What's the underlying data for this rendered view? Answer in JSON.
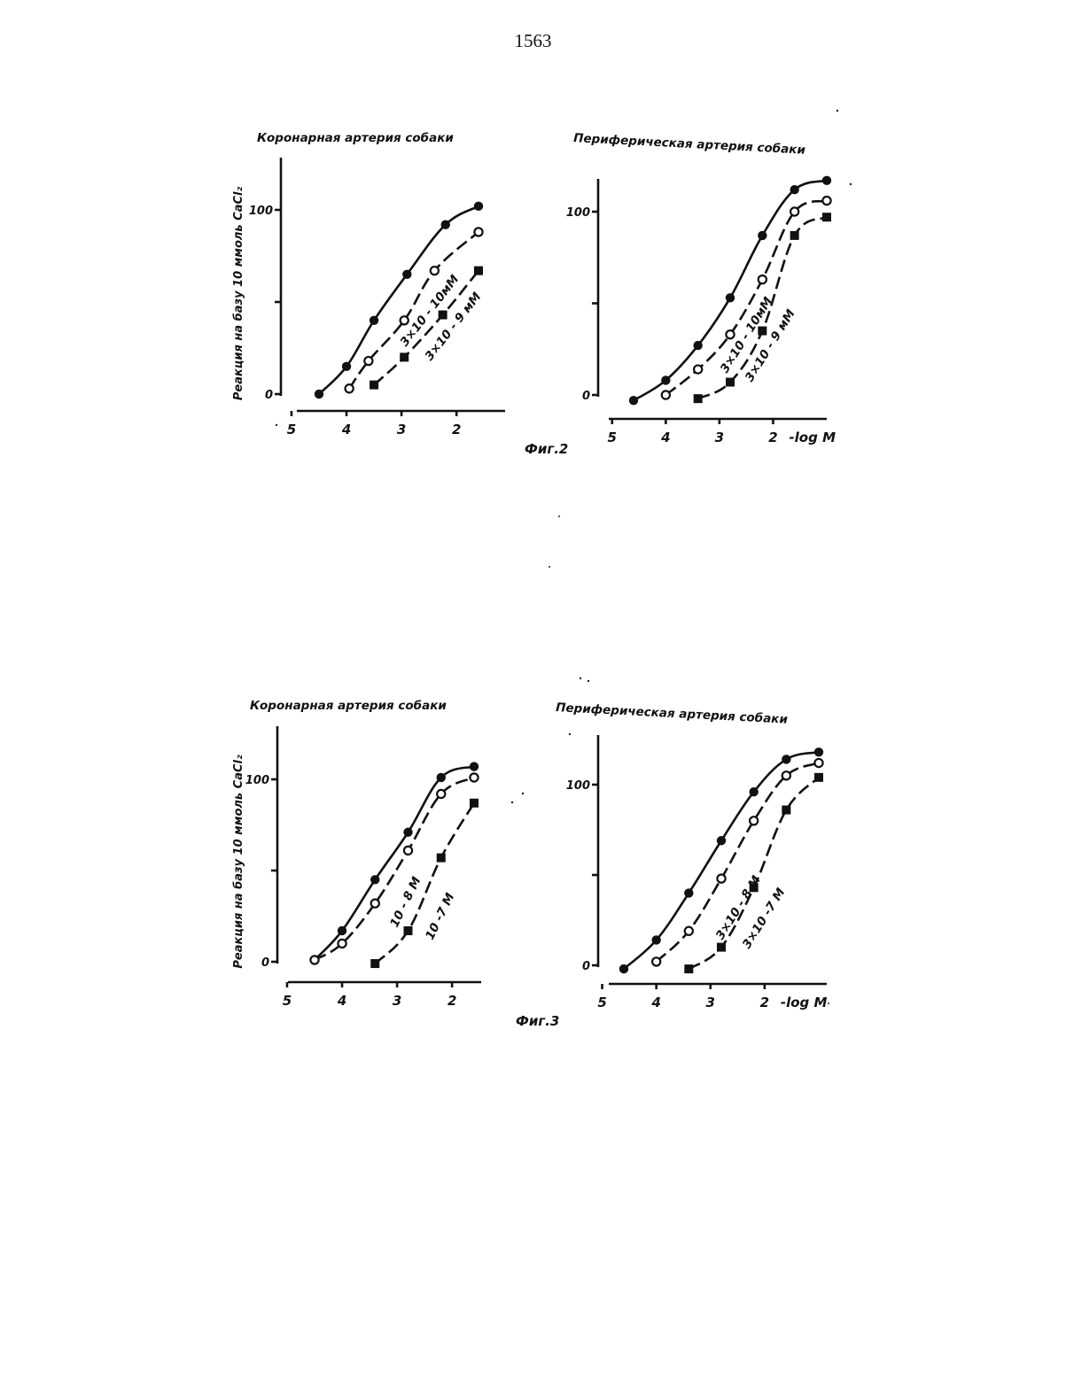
{
  "page_number": "1563",
  "figures": [
    {
      "caption": "Фиг.2"
    },
    {
      "caption": "Фиг.3"
    }
  ],
  "chart_data": [
    {
      "type": "line",
      "figure": 2,
      "title": "Коронарная артерия собаки",
      "ylabel": "Реакция на базу 10 ммоль CaCl₂",
      "xlabel": "",
      "x_ticks": [
        5,
        4,
        3,
        2
      ],
      "y_ticks": [
        0,
        50,
        100
      ],
      "y_tick_labels": [
        "0",
        "",
        "100"
      ],
      "xlim": [
        5,
        1.5
      ],
      "ylim": [
        0,
        125
      ],
      "series": [
        {
          "name": "",
          "marker": "filled-circle",
          "style": "solid",
          "x": [
            4.5,
            4.0,
            3.5,
            2.9,
            2.2,
            1.6
          ],
          "y": [
            0,
            15,
            40,
            65,
            92,
            102
          ]
        },
        {
          "name": "3×10⁻¹⁰ мМ",
          "marker": "open-circle",
          "style": "dashed",
          "x": [
            3.95,
            3.6,
            2.95,
            2.4,
            1.6
          ],
          "y": [
            3,
            18,
            40,
            67,
            88
          ]
        },
        {
          "name": "3×10⁻⁹ мМ",
          "marker": "filled-square",
          "style": "dashed",
          "x": [
            3.5,
            2.95,
            2.25,
            1.6
          ],
          "y": [
            5,
            20,
            43,
            67
          ]
        }
      ],
      "series_labels": [
        {
          "text": "3×10 - 10мМ",
          "series": 1
        },
        {
          "text": "3×10 - 9 мМ",
          "series": 2
        }
      ]
    },
    {
      "type": "line",
      "figure": 2,
      "title": "Периферическая артерия собаки",
      "ylabel": "",
      "xlabel": "-log M",
      "x_ticks": [
        5,
        4,
        3,
        2
      ],
      "x_tick_labels": [
        "5",
        "4",
        "3",
        "2"
      ],
      "y_ticks": [
        0,
        50,
        100
      ],
      "y_tick_labels": [
        "0",
        "",
        "100"
      ],
      "xlim": [
        5,
        1.0
      ],
      "ylim": [
        0,
        125
      ],
      "series": [
        {
          "name": "",
          "marker": "filled-circle",
          "style": "solid",
          "x": [
            4.6,
            4.0,
            3.4,
            2.8,
            2.2,
            1.6,
            1.0
          ],
          "y": [
            -3,
            8,
            27,
            53,
            87,
            112,
            117
          ]
        },
        {
          "name": "3×10⁻¹⁰ мМ",
          "marker": "open-circle",
          "style": "dashed",
          "x": [
            4.0,
            3.4,
            2.8,
            2.2,
            1.6,
            1.0
          ],
          "y": [
            0,
            14,
            33,
            63,
            100,
            106
          ]
        },
        {
          "name": "3×10⁻⁹ мМ",
          "marker": "filled-square",
          "style": "dashed",
          "x": [
            3.4,
            2.8,
            2.2,
            1.6,
            1.0
          ],
          "y": [
            -2,
            7,
            35,
            87,
            97
          ]
        }
      ],
      "series_labels": [
        {
          "text": "3×10 - 10мМ",
          "series": 1
        },
        {
          "text": "3×10 - 9 мМ",
          "series": 2
        }
      ]
    },
    {
      "type": "line",
      "figure": 3,
      "title": "Коронарная артерия собаки",
      "ylabel": "Реакция на базу 10 ммоль CaCl₂",
      "xlabel": "",
      "x_ticks": [
        5,
        4,
        3,
        2
      ],
      "y_ticks": [
        0,
        50,
        100
      ],
      "y_tick_labels": [
        "0",
        "",
        "100"
      ],
      "xlim": [
        5,
        1.5
      ],
      "ylim": [
        0,
        125
      ],
      "series": [
        {
          "name": "",
          "marker": "filled-circle",
          "style": "solid",
          "x": [
            4.5,
            4.0,
            3.4,
            2.8,
            2.2,
            1.6
          ],
          "y": [
            1,
            17,
            45,
            71,
            101,
            107
          ]
        },
        {
          "name": "10⁻⁸ М",
          "marker": "open-circle",
          "style": "dashed",
          "x": [
            4.5,
            4.0,
            3.4,
            2.8,
            2.2,
            1.6
          ],
          "y": [
            1,
            10,
            32,
            61,
            92,
            101
          ]
        },
        {
          "name": "10⁻⁷ М",
          "marker": "filled-square",
          "style": "dashed",
          "x": [
            3.4,
            2.8,
            2.2,
            1.6
          ],
          "y": [
            -1,
            17,
            57,
            87
          ]
        }
      ],
      "series_labels": [
        {
          "text": "10 - 8 М",
          "series": 1
        },
        {
          "text": "10 -7 М",
          "series": 2
        }
      ]
    },
    {
      "type": "line",
      "figure": 3,
      "title": "Периферическая артерия собаки",
      "ylabel": "",
      "xlabel": "-log M",
      "x_ticks": [
        5,
        4,
        3,
        2
      ],
      "x_tick_labels": [
        "5",
        "4",
        "3",
        "2"
      ],
      "y_ticks": [
        0,
        50,
        100
      ],
      "y_tick_labels": [
        "0",
        "",
        "100"
      ],
      "xlim": [
        5,
        1.0
      ],
      "ylim": [
        0,
        125
      ],
      "series": [
        {
          "name": "",
          "marker": "filled-circle",
          "style": "solid",
          "x": [
            4.6,
            4.0,
            3.4,
            2.8,
            2.2,
            1.6,
            1.0
          ],
          "y": [
            -2,
            14,
            40,
            69,
            96,
            114,
            118
          ]
        },
        {
          "name": "3×10⁻⁸ М",
          "marker": "open-circle",
          "style": "dashed",
          "x": [
            4.0,
            3.4,
            2.8,
            2.2,
            1.6,
            1.0
          ],
          "y": [
            2,
            19,
            48,
            80,
            105,
            112
          ]
        },
        {
          "name": "3×10⁻⁷ М",
          "marker": "filled-square",
          "style": "dashed",
          "x": [
            3.4,
            2.8,
            2.2,
            1.6,
            1.0
          ],
          "y": [
            -2,
            10,
            43,
            86,
            104
          ]
        }
      ],
      "series_labels": [
        {
          "text": "3×10 - 8 М",
          "series": 1
        },
        {
          "text": "3×10 -7 М",
          "series": 2
        }
      ]
    }
  ]
}
